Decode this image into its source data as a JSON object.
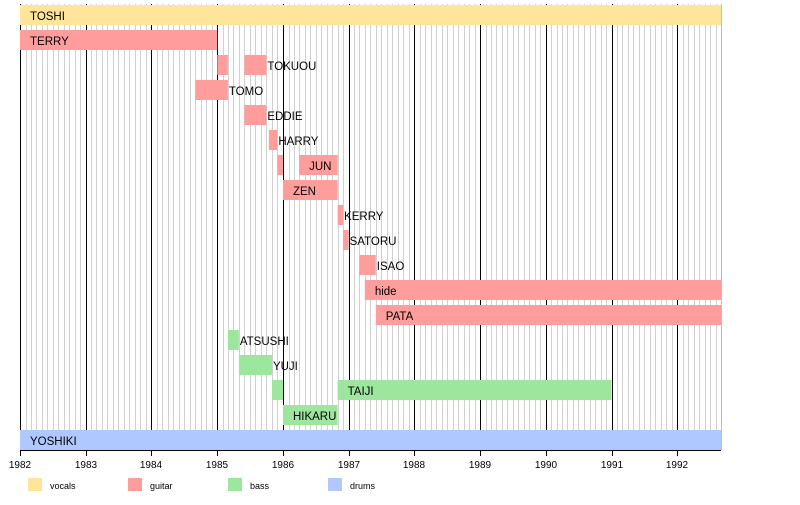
{
  "chart_data": {
    "type": "timeline",
    "title": "",
    "xlabel": "",
    "ylabel": "",
    "x_range": [
      "1982-01-01",
      "1992-08-31"
    ],
    "tick_labels": [
      "1982",
      "1983",
      "1984",
      "1985",
      "1986",
      "1987",
      "1988",
      "1989",
      "1990",
      "1991",
      "1992"
    ],
    "minor_grid": "monthly",
    "categories": [
      {
        "key": "vocals",
        "label": "vocals",
        "color": "#ffe59a"
      },
      {
        "key": "guitar",
        "label": "guitar",
        "color": "#ff9d9d"
      },
      {
        "key": "bass",
        "label": "bass",
        "color": "#9de69d"
      },
      {
        "key": "drums",
        "label": "drums",
        "color": "#afc9ff"
      }
    ],
    "rows": [
      {
        "label": "TOSHI",
        "category": "vocals",
        "periods": [
          [
            "1982-01-01",
            "1992-08-31"
          ]
        ]
      },
      {
        "label": "TERRY",
        "category": "guitar",
        "periods": [
          [
            "1982-01-01",
            "1985-01-01"
          ]
        ]
      },
      {
        "label": "TOKUOU",
        "category": "guitar",
        "periods": [
          [
            "1985-01-01",
            "1985-03-01"
          ],
          [
            "1985-06-01",
            "1985-10-01"
          ]
        ]
      },
      {
        "label": "TOMO",
        "category": "guitar",
        "periods": [
          [
            "1984-09-01",
            "1985-03-01"
          ]
        ]
      },
      {
        "label": "EDDIE",
        "category": "guitar",
        "periods": [
          [
            "1985-06-01",
            "1985-10-01"
          ]
        ]
      },
      {
        "label": "HARRY",
        "category": "guitar",
        "periods": [
          [
            "1985-10-15",
            "1985-12-01"
          ]
        ]
      },
      {
        "label": "JUN",
        "category": "guitar",
        "periods": [
          [
            "1985-12-01",
            "1986-01-01"
          ],
          [
            "1986-04-01",
            "1986-11-01"
          ]
        ]
      },
      {
        "label": "ZEN",
        "category": "guitar",
        "periods": [
          [
            "1986-01-01",
            "1986-11-01"
          ]
        ]
      },
      {
        "label": "KERRY",
        "category": "guitar",
        "periods": [
          [
            "1986-11-01",
            "1986-12-01"
          ]
        ]
      },
      {
        "label": "SATORU",
        "category": "guitar",
        "periods": [
          [
            "1986-12-01",
            "1987-01-01"
          ]
        ]
      },
      {
        "label": "ISAO",
        "category": "guitar",
        "periods": [
          [
            "1987-03-01",
            "1987-06-01"
          ]
        ]
      },
      {
        "label": "hide",
        "category": "guitar",
        "periods": [
          [
            "1987-04-01",
            "1992-08-31"
          ]
        ]
      },
      {
        "label": "PATA",
        "category": "guitar",
        "periods": [
          [
            "1987-06-01",
            "1992-08-31"
          ]
        ]
      },
      {
        "label": "ATSUSHI",
        "category": "bass",
        "periods": [
          [
            "1985-03-01",
            "1985-05-01"
          ]
        ]
      },
      {
        "label": "YUJI",
        "category": "bass",
        "periods": [
          [
            "1985-05-01",
            "1985-11-01"
          ]
        ]
      },
      {
        "label": "TAIJI",
        "category": "bass",
        "periods": [
          [
            "1985-11-01",
            "1986-01-01"
          ],
          [
            "1986-11-01",
            "1991-01-01"
          ]
        ]
      },
      {
        "label": "HIKARU",
        "category": "bass",
        "periods": [
          [
            "1986-01-01",
            "1986-11-01"
          ]
        ]
      },
      {
        "label": "YOSHIKI",
        "category": "drums",
        "periods": [
          [
            "1982-01-01",
            "1992-08-31"
          ]
        ]
      }
    ]
  }
}
